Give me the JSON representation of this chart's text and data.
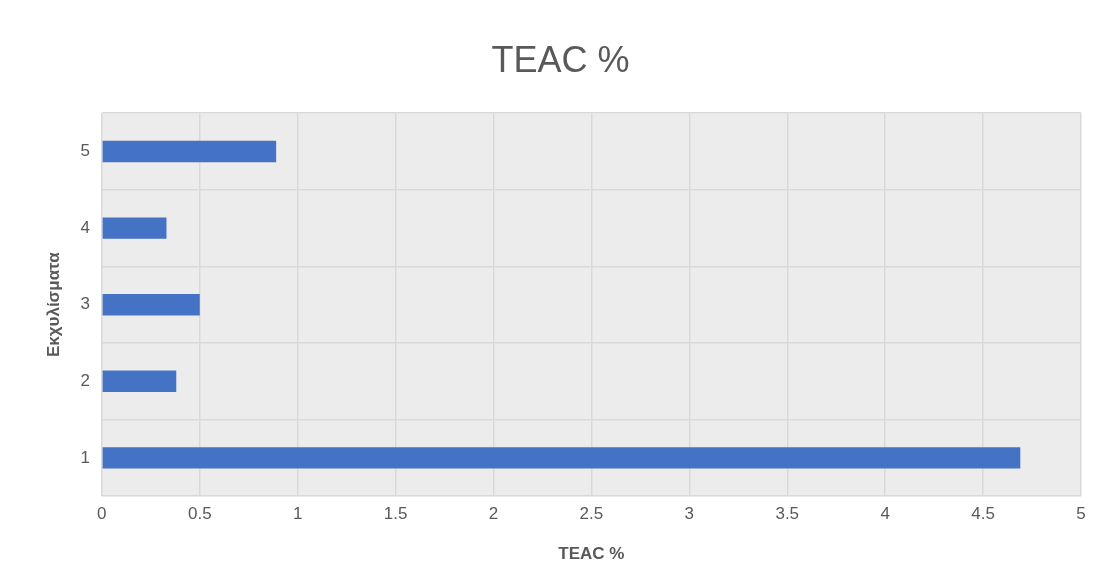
{
  "chart_data": {
    "type": "bar",
    "orientation": "horizontal",
    "title": "TEAC %",
    "xlabel": "TEAC %",
    "ylabel": "Εκχυλίσματα",
    "categories": [
      "5",
      "4",
      "3",
      "2",
      "1"
    ],
    "values": [
      0.89,
      0.33,
      0.5,
      0.38,
      4.69
    ],
    "color": "#4472c4",
    "xlim": [
      0,
      5
    ],
    "xticks": [
      0,
      0.5,
      1,
      1.5,
      2,
      2.5,
      3,
      3.5,
      4,
      4.5,
      5
    ],
    "grid": true,
    "legend": false
  }
}
